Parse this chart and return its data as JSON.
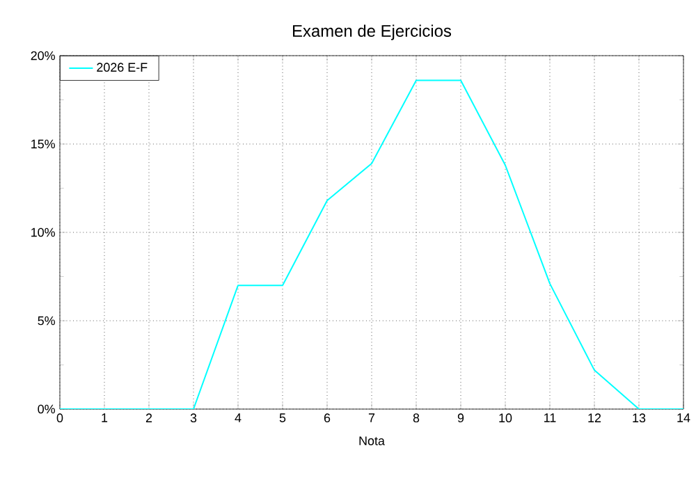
{
  "chart_data": {
    "type": "line",
    "title": "Examen de Ejercicios",
    "xlabel": "Nota",
    "x": [
      0,
      1,
      2,
      3,
      4,
      5,
      6,
      7,
      8,
      9,
      10,
      11,
      12,
      13,
      14
    ],
    "series": [
      {
        "name": "2026 E-F",
        "color": "#00ffff",
        "values": [
          0,
          0,
          0,
          0,
          7,
          7,
          11.8,
          13.9,
          18.6,
          18.6,
          13.8,
          7.1,
          2.2,
          0,
          0
        ]
      }
    ],
    "xlim": [
      0,
      14
    ],
    "xticks": [
      0,
      1,
      2,
      3,
      4,
      5,
      6,
      7,
      8,
      9,
      10,
      11,
      12,
      13,
      14
    ],
    "ylim": [
      0,
      20
    ],
    "yticks": [
      {
        "value": 0,
        "label": "0%"
      },
      {
        "value": 5,
        "label": "5%"
      },
      {
        "value": 10,
        "label": "10%"
      },
      {
        "value": 15,
        "label": "15%"
      },
      {
        "value": 20,
        "label": "20%"
      }
    ],
    "grid": true,
    "legend": "top left",
    "marker": "none",
    "line_style": "solid"
  }
}
